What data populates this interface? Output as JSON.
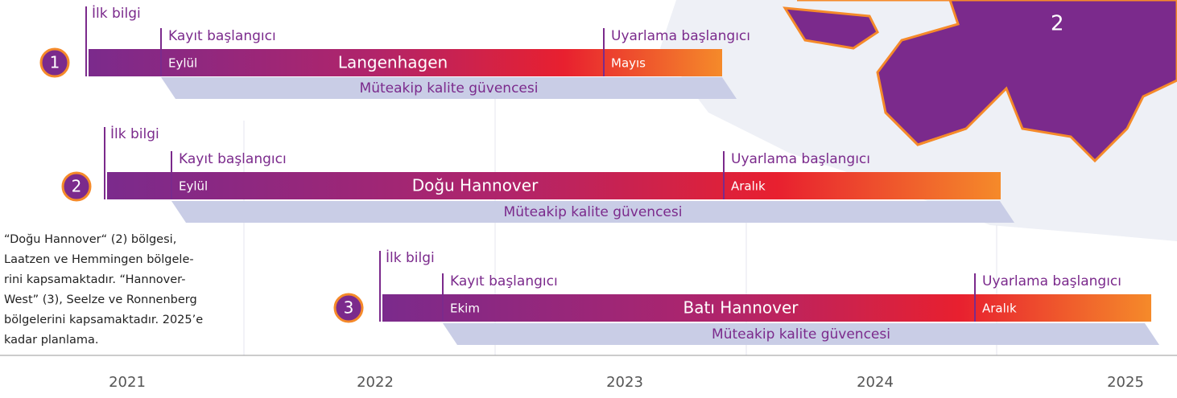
{
  "map_label": "2",
  "rows": [
    {
      "number": "1",
      "first_info": "İlk bilgi",
      "registration": "Kayıt başlangıcı",
      "registration_month": "Eylül",
      "name": "Langenhagen",
      "adaptation": "Uyarlama başlangıcı",
      "adaptation_month": "Mayıs",
      "quality": "Müteakip kalite güvencesi"
    },
    {
      "number": "2",
      "first_info": "İlk bilgi",
      "registration": "Kayıt başlangıcı",
      "registration_month": "Eylül",
      "name": "Doğu Hannover",
      "adaptation": "Uyarlama başlangıcı",
      "adaptation_month": "Aralık",
      "quality": "Müteakip kalite güvencesi"
    },
    {
      "number": "3",
      "first_info": "İlk bilgi",
      "registration": "Kayıt başlangıcı",
      "registration_month": "Ekim",
      "name": "Batı Hannover",
      "adaptation": "Uyarlama başlangıcı",
      "adaptation_month": "Aralık",
      "quality": "Müteakip kalite güvencesi"
    }
  ],
  "note": {
    "lines": [
      "“Doğu Hannover“ (2) bölgesi,",
      "Laatzen ve Hemmingen bölgele-",
      "rini kapsamaktadır. “Hannover-",
      "West” (3), Seelze ve Ronnenberg",
      "bölgelerini kapsamaktadır. 2025’e",
      "kadar planlama."
    ]
  },
  "years": [
    "2021",
    "2022",
    "2023",
    "2024",
    "2025"
  ]
}
